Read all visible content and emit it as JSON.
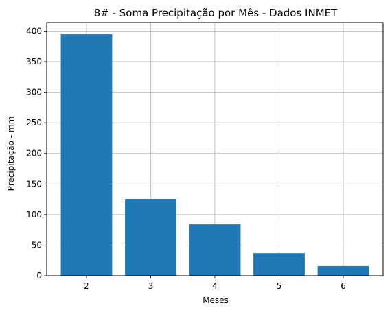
{
  "chart_data": {
    "type": "bar",
    "title": "8# - Soma Precipitação por Mês - Dados INMET",
    "xlabel": "Meses",
    "ylabel": "Precipitação - mm",
    "categories": [
      "2",
      "3",
      "4",
      "5",
      "6"
    ],
    "values": [
      394.8,
      125.6,
      84.0,
      36.8,
      15.8
    ],
    "ylim": [
      0,
      414
    ],
    "yticks": [
      0,
      50,
      100,
      150,
      200,
      250,
      300,
      350,
      400
    ],
    "grid": true,
    "bar_color": "#1f77b4"
  }
}
